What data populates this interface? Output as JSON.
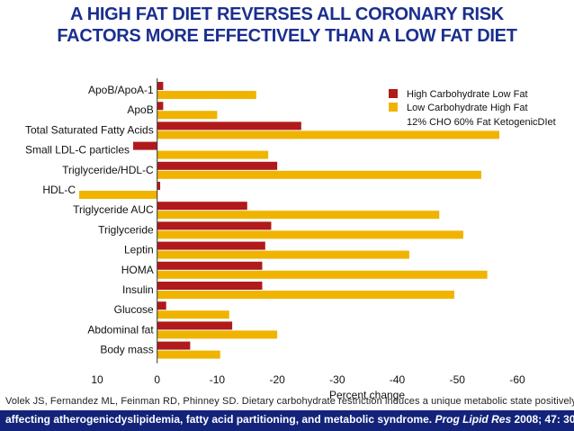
{
  "title": {
    "line1": "A HIGH FAT DIET REVERSES ALL CORONARY RISK",
    "line2": "FACTORS MORE EFFECTIVELY THAN A LOW FAT DIET"
  },
  "citation": {
    "line1": "Volek JS, Fernandez ML, Feinman RD, Phinney SD. Dietary carbohydrate restriction induces a unique metabolic state positively",
    "line2_plain": "affecting atherogenicdyslipidemia, fatty acid partitioning, and metabolic syndrome.",
    "line2_journal": "Prog Lipid Res",
    "line2_end": "2008; 47: 307-318."
  },
  "colors": {
    "high_carb": "#b01a1a",
    "low_carb": "#f0b400",
    "title": "#1b2f8f",
    "footer_band": "#13237a"
  },
  "chart_data": {
    "type": "bar",
    "orientation": "horizontal",
    "xlabel": "Percent change",
    "ylabel": "",
    "xlim": [
      10,
      -60
    ],
    "x_ticks": [
      10,
      0,
      -10,
      -20,
      -30,
      -40,
      -50,
      -60
    ],
    "x_tick_labels": [
      "10",
      "0",
      "-10",
      "-20",
      "-30",
      "-40",
      "-50",
      "-60"
    ],
    "categories": [
      "ApoB/ApoA-1",
      "ApoB",
      "Total Saturated Fatty Acids",
      "Small LDL-C particles",
      "Triglyceride/HDL-C",
      "HDL-C",
      "Triglyceride AUC",
      "Triglyceride",
      "Leptin",
      "HOMA",
      "Insulin",
      "Glucose",
      "Abdominal fat",
      "Body mass"
    ],
    "series": [
      {
        "name": "High Carbohydrate Low Fat",
        "values": [
          -1,
          -1,
          -24,
          4,
          -20,
          -0.5,
          -15,
          -19,
          -18,
          -17.5,
          -17.5,
          -1.5,
          -12.5,
          -5.5
        ]
      },
      {
        "name": "Low Carbohydrate High Fat",
        "values": [
          -16.5,
          -10,
          -57,
          -18.5,
          -54,
          13,
          -47,
          -51,
          -42,
          -55,
          -49.5,
          -12,
          -20,
          -10.5
        ]
      }
    ],
    "legend": {
      "placement": "top-right",
      "note": "12% CHO 60% Fat KetogenicDIet"
    },
    "grid": false
  }
}
